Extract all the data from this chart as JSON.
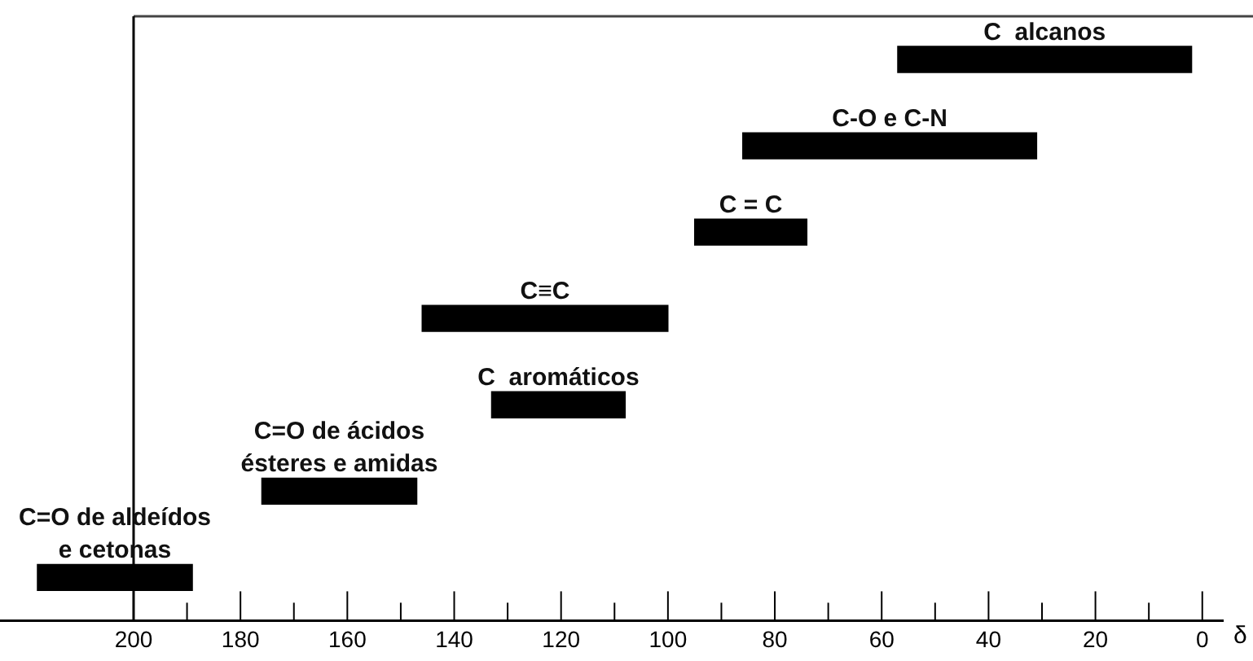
{
  "chart_data": {
    "type": "bar",
    "orientation": "horizontal",
    "xlabel": "δ",
    "categories": [
      "C  alcanos",
      "C-O e C-N",
      "C = C",
      "C≡C",
      "C  aromáticos",
      "C=O de ácidos\nésteres e amidas",
      "C=O de aldeídos\ne cetonas"
    ],
    "base": [
      2,
      31,
      74,
      100,
      108,
      147,
      189
    ],
    "values": [
      55,
      55,
      21,
      46,
      25,
      29,
      29
    ],
    "color": "#000000",
    "xlim": [
      225,
      -4
    ],
    "xticks": [
      200,
      {
        "value": 190,
        "label": null
      },
      180,
      {
        "value": 170,
        "label": null
      },
      160,
      {
        "value": 150,
        "label": null
      },
      140,
      {
        "value": 130,
        "label": null
      },
      120,
      {
        "value": 110,
        "label": null
      },
      100,
      {
        "value": 90,
        "label": null
      },
      80,
      {
        "value": 70,
        "label": null
      },
      60,
      {
        "value": 50,
        "label": null
      },
      40,
      {
        "value": 30,
        "label": null
      },
      20,
      {
        "value": 10,
        "label": null
      },
      0
    ],
    "ref_lines": [
      {
        "axis": "x",
        "value": 200,
        "color": "#000000"
      }
    ],
    "tick_labels": "x",
    "grid": false,
    "legend": false
  }
}
